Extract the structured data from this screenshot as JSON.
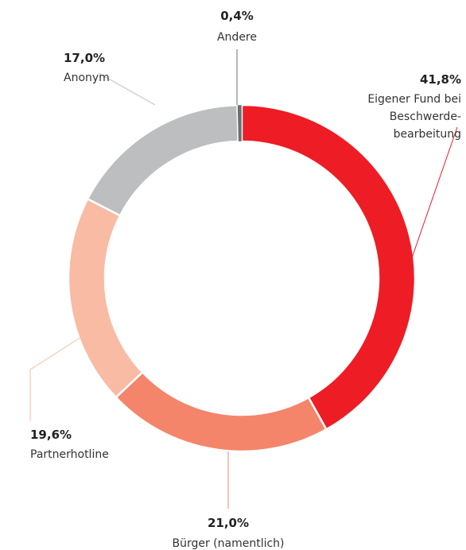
{
  "chart_data": {
    "type": "donut",
    "categories": [
      "Eigener Fund bei\nBeschwerde-\nbearbeitung",
      "Bürger (namentlich)",
      "Partnerhotline",
      "Anonym",
      "Andere"
    ],
    "values": [
      41.8,
      21.0,
      19.6,
      17.0,
      0.4
    ],
    "value_labels": [
      "41,8%",
      "21,0%",
      "19,6%",
      "17,0%",
      "0,4%"
    ],
    "colors": [
      "#ee1c25",
      "#f4856a",
      "#f9bba4",
      "#bcbec0",
      "#6d6e71"
    ]
  }
}
